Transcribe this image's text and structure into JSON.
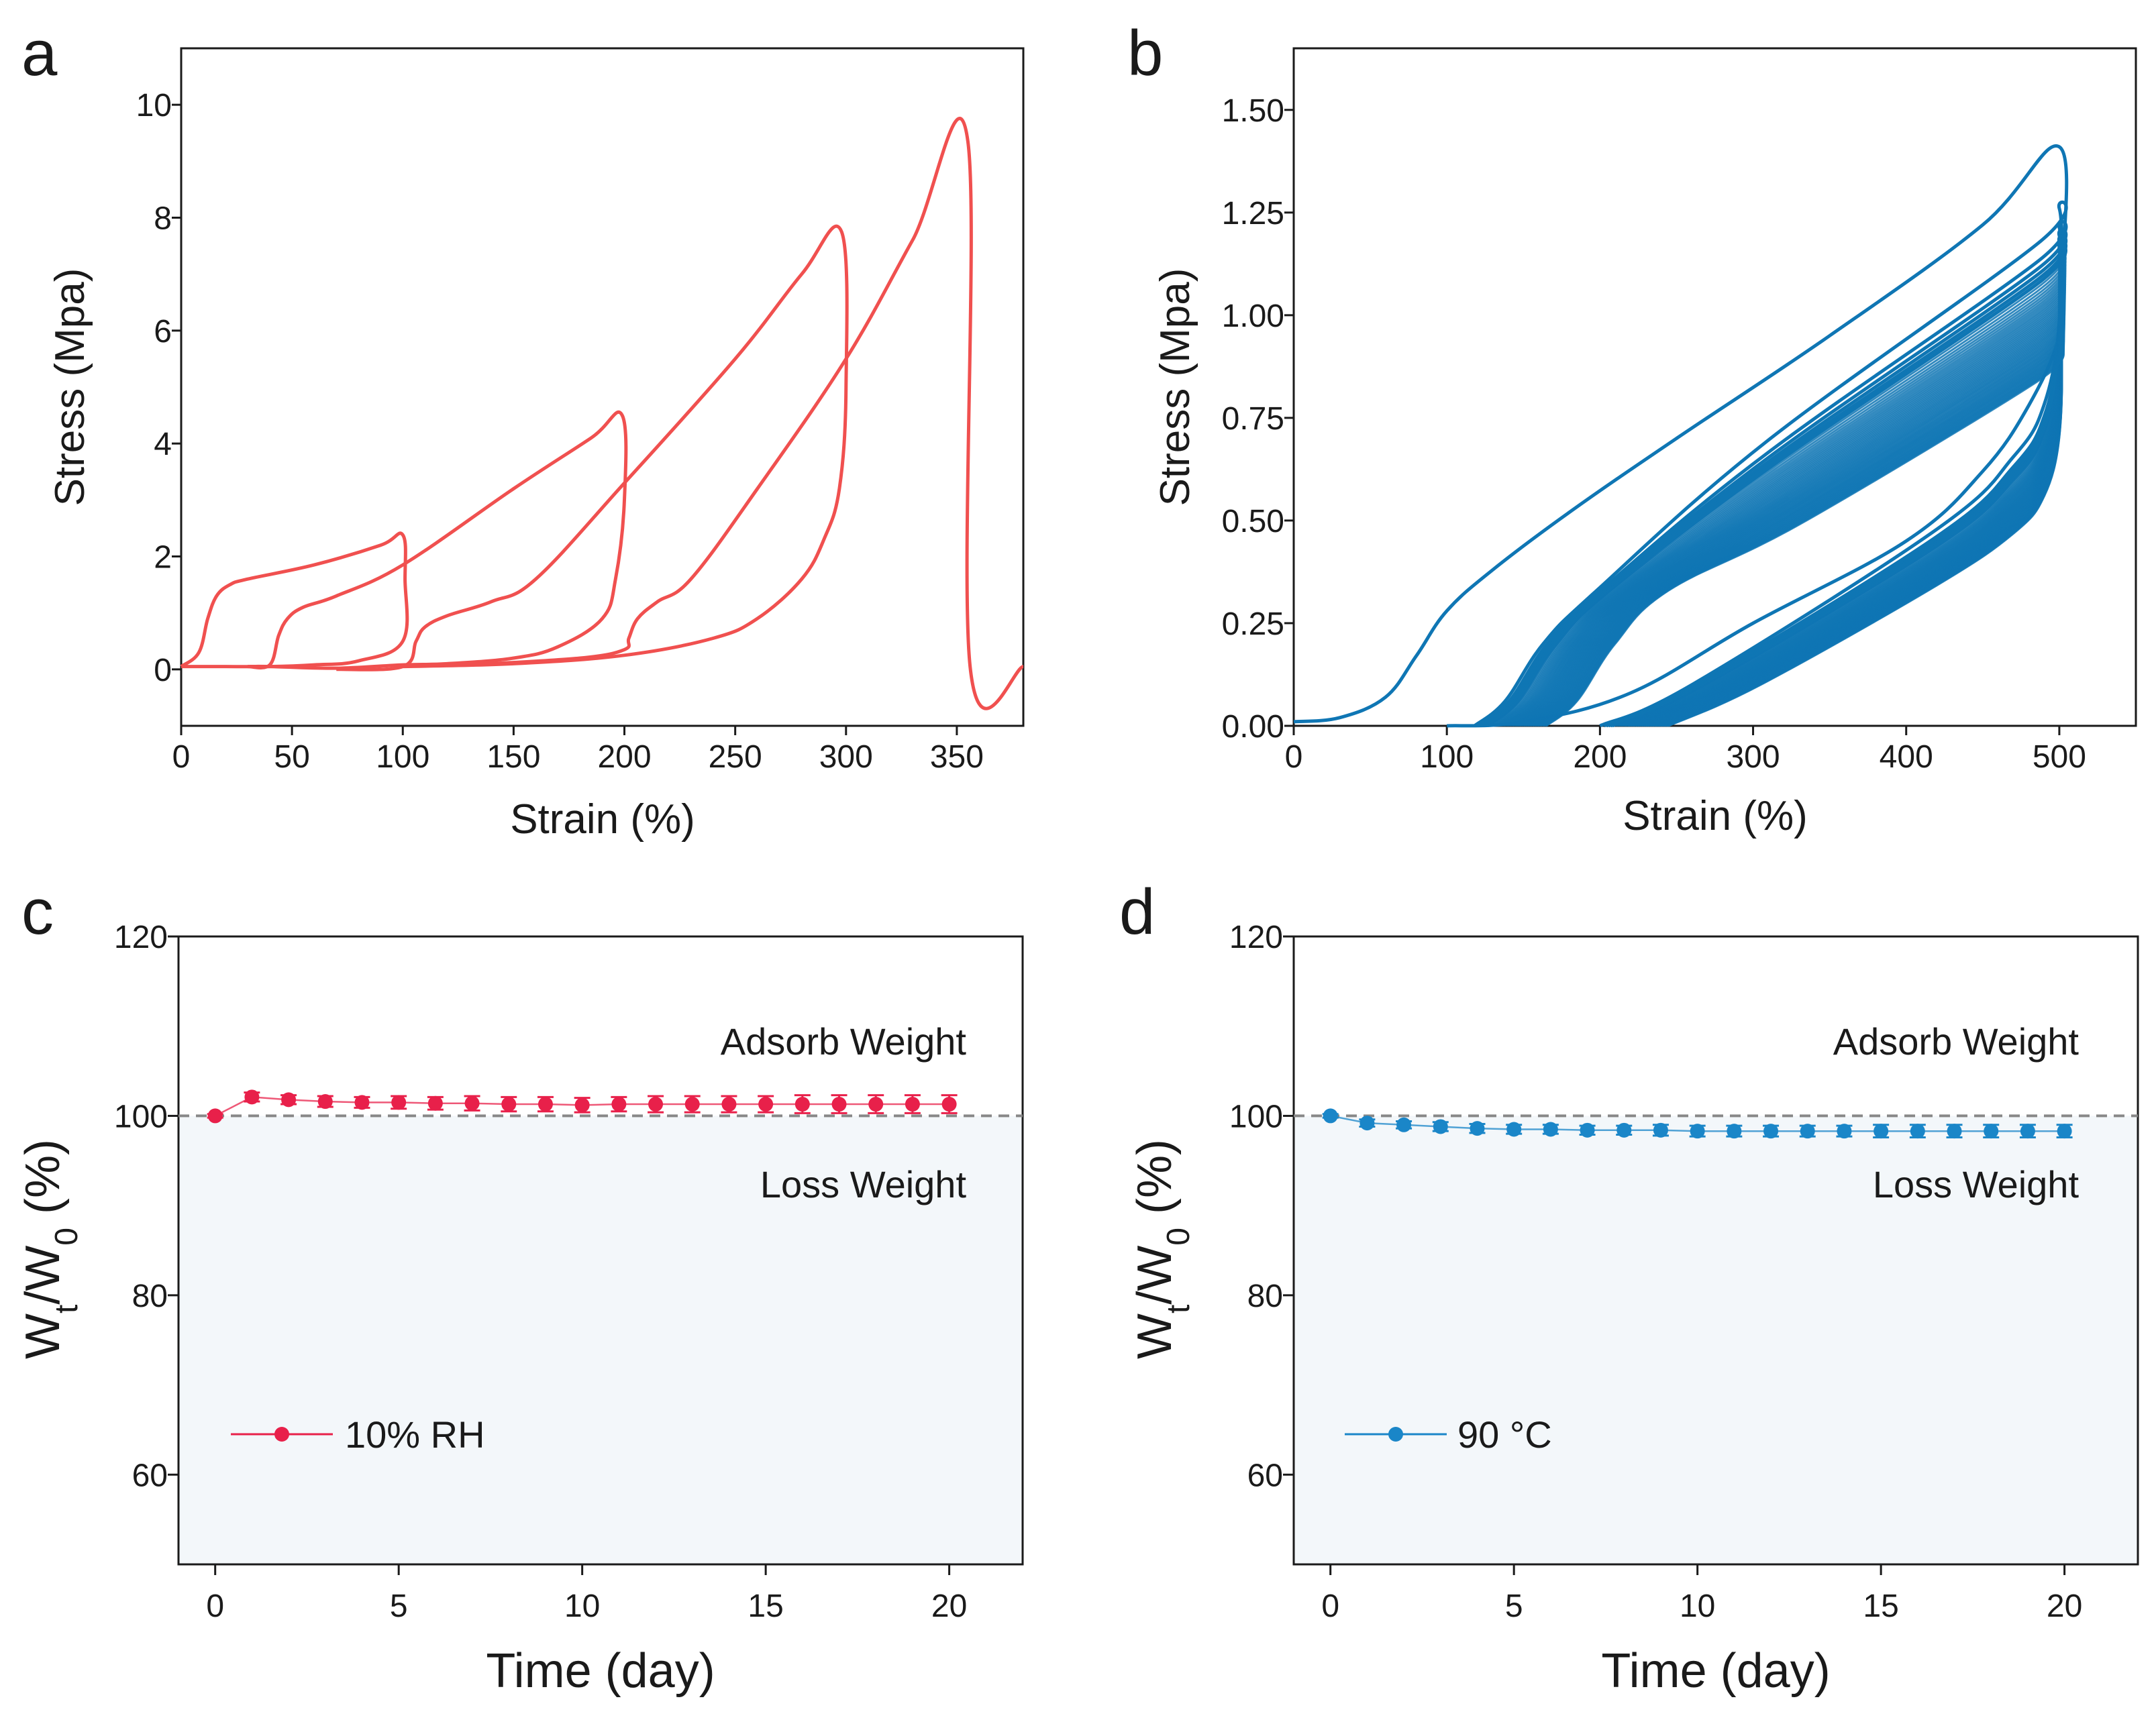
{
  "panels": {
    "a": {
      "label": "a",
      "chart_data": {
        "type": "line",
        "xlabel": "Strain (%)",
        "ylabel": "Stress (Mpa)",
        "xlim": [
          0,
          380
        ],
        "ylim": [
          -1,
          11
        ],
        "xticks": [
          "0",
          "50",
          "100",
          "150",
          "200",
          "250",
          "300",
          "350"
        ],
        "yticks": [
          "0",
          "2",
          "4",
          "6",
          "8",
          "10"
        ],
        "color": "#f0504f",
        "series": [
          {
            "x": [
              0,
              8,
              12,
              16,
              22,
              30,
              60,
              90,
              100,
              101,
              100,
              80,
              60,
              40,
              20,
              0
            ],
            "y": [
              0.05,
              0.3,
              0.9,
              1.3,
              1.5,
              1.6,
              1.85,
              2.2,
              2.38,
              1.6,
              0.5,
              0.15,
              0.08,
              0.05,
              0.05,
              0.05
            ]
          },
          {
            "x": [
              30,
              40,
              44,
              48,
              55,
              70,
              100,
              150,
              185,
              199,
              200,
              196,
              190,
              170,
              150,
              120,
              100,
              70,
              40,
              30
            ],
            "y": [
              0.05,
              0.08,
              0.6,
              0.9,
              1.1,
              1.3,
              1.85,
              3.2,
              4.1,
              4.5,
              3.0,
              1.6,
              0.9,
              0.4,
              0.2,
              0.1,
              0.08,
              0.02,
              0.05,
              0.05
            ]
          },
          {
            "x": [
              70,
              100,
              106,
              110,
              120,
              140,
              160,
              200,
              250,
              280,
              298,
              300,
              297,
              290,
              280,
              260,
              240,
              200,
              150,
              100
            ],
            "y": [
              0.0,
              0.05,
              0.5,
              0.75,
              0.95,
              1.2,
              1.6,
              3.3,
              5.5,
              7.0,
              7.75,
              5.0,
              3.2,
              2.3,
              1.6,
              0.9,
              0.55,
              0.25,
              0.1,
              0.05
            ]
          },
          {
            "x": [
              130,
              180,
              200,
              202,
              206,
              215,
              230,
              260,
              300,
              330,
              355,
              356,
              380
            ],
            "y": [
              0.08,
              0.2,
              0.35,
              0.55,
              0.9,
              1.2,
              1.6,
              3.2,
              5.5,
              7.6,
              9.35,
              0.05,
              0.05
            ]
          }
        ]
      }
    },
    "b": {
      "label": "b",
      "chart_data": {
        "type": "line",
        "xlabel": "Strain (%)",
        "ylabel": "Stress (Mpa)",
        "xlim": [
          0,
          550
        ],
        "ylim": [
          0,
          1.65
        ],
        "xticks": [
          "0",
          "100",
          "200",
          "300",
          "400",
          "500"
        ],
        "yticks": [
          "0.00",
          "0.25",
          "0.50",
          "0.75",
          "1.00",
          "1.25",
          "1.50"
        ],
        "color": "#0f76b4",
        "first_cycle": {
          "x": [
            0,
            30,
            60,
            80,
            100,
            130,
            180,
            250,
            350,
            450,
            500,
            502,
            500,
            480,
            450,
            400,
            300,
            220,
            150,
            100
          ],
          "y": [
            0.01,
            0.02,
            0.07,
            0.17,
            0.28,
            0.38,
            0.52,
            0.7,
            0.95,
            1.22,
            1.41,
            1.1,
            0.95,
            0.78,
            0.62,
            0.45,
            0.25,
            0.08,
            0.01,
            0.0
          ]
        },
        "cycle_band": {
          "start_strain": [
            118,
            165
          ],
          "peak_stress": [
            1.26,
            0.9
          ],
          "return_strain": [
            200,
            245
          ]
        }
      }
    },
    "c": {
      "label": "c",
      "chart_data": {
        "type": "line",
        "xlabel": "Time (day)",
        "ylabel_main": "W",
        "ylabel_sub1": "t",
        "ylabel_mid": "/W",
        "ylabel_sub2": "0",
        "ylabel_tail": " (%)",
        "xlim": [
          -1,
          22
        ],
        "ylim": [
          50,
          120
        ],
        "xticks": [
          "0",
          "5",
          "10",
          "15",
          "20"
        ],
        "yticks": [
          "60",
          "80",
          "100",
          "120"
        ],
        "reference_line": 100,
        "annotation_upper": "Adsorb Weight",
        "annotation_lower": "Loss Weight",
        "legend": "10% RH",
        "color": "#e8204a",
        "x": [
          0,
          1,
          2,
          3,
          4,
          5,
          6,
          7,
          8,
          9,
          10,
          11,
          12,
          13,
          14,
          15,
          16,
          17,
          18,
          19,
          20
        ],
        "y": [
          100,
          102.1,
          101.8,
          101.6,
          101.5,
          101.5,
          101.4,
          101.4,
          101.3,
          101.3,
          101.2,
          101.3,
          101.3,
          101.3,
          101.3,
          101.3,
          101.3,
          101.3,
          101.3,
          101.3,
          101.3
        ],
        "error": [
          0.2,
          0.5,
          0.5,
          0.6,
          0.6,
          0.7,
          0.7,
          0.8,
          0.8,
          0.8,
          0.8,
          0.8,
          0.9,
          0.9,
          0.9,
          0.9,
          1.0,
          1.0,
          1.0,
          1.0,
          1.0
        ]
      }
    },
    "d": {
      "label": "d",
      "chart_data": {
        "type": "line",
        "xlabel": "Time (day)",
        "ylabel_main": "W",
        "ylabel_sub1": "t",
        "ylabel_mid": "/W",
        "ylabel_sub2": "0",
        "ylabel_tail": " (%)",
        "xlim": [
          -1,
          22
        ],
        "ylim": [
          50,
          120
        ],
        "xticks": [
          "0",
          "5",
          "10",
          "15",
          "20"
        ],
        "yticks": [
          "60",
          "80",
          "100",
          "120"
        ],
        "reference_line": 100,
        "annotation_upper": "Adsorb Weight",
        "annotation_lower": "Loss Weight",
        "legend": "90 °C",
        "color": "#1a86c8",
        "x": [
          0,
          1,
          2,
          3,
          4,
          5,
          6,
          7,
          8,
          9,
          10,
          11,
          12,
          13,
          14,
          15,
          16,
          17,
          18,
          19,
          20
        ],
        "y": [
          100,
          99.2,
          99.0,
          98.8,
          98.6,
          98.5,
          98.5,
          98.4,
          98.4,
          98.4,
          98.3,
          98.3,
          98.3,
          98.3,
          98.3,
          98.3,
          98.3,
          98.3,
          98.3,
          98.3,
          98.3
        ],
        "error": [
          0.2,
          0.4,
          0.4,
          0.5,
          0.5,
          0.5,
          0.5,
          0.5,
          0.5,
          0.6,
          0.6,
          0.6,
          0.6,
          0.6,
          0.6,
          0.7,
          0.7,
          0.7,
          0.7,
          0.7,
          0.7
        ]
      }
    }
  }
}
